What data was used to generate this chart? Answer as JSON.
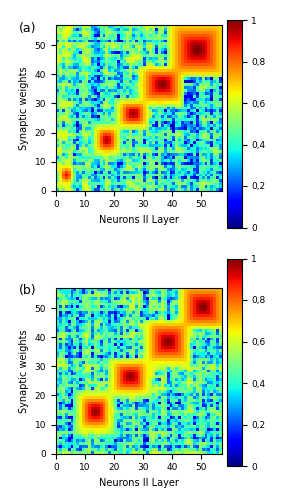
{
  "title_a": "(a)",
  "title_b": "(b)",
  "xlabel": "Neurons II Layer",
  "ylabel": "Synaptic weights",
  "xticks": [
    0,
    10,
    20,
    30,
    40,
    50
  ],
  "yticks": [
    0,
    10,
    20,
    30,
    40,
    50
  ],
  "colorbar_ticks": [
    0,
    0.2,
    0.4,
    0.6,
    0.8,
    1.0
  ],
  "colorbar_ticklabels": [
    "0",
    "0,2",
    "0,4",
    "0,6",
    "0,8",
    "1"
  ],
  "grid_size": 57,
  "cmap": "jet",
  "figsize": [
    2.86,
    5.0
  ],
  "dpi": 100,
  "bg_base": 0.35,
  "bg_noise_scale": 0.25
}
